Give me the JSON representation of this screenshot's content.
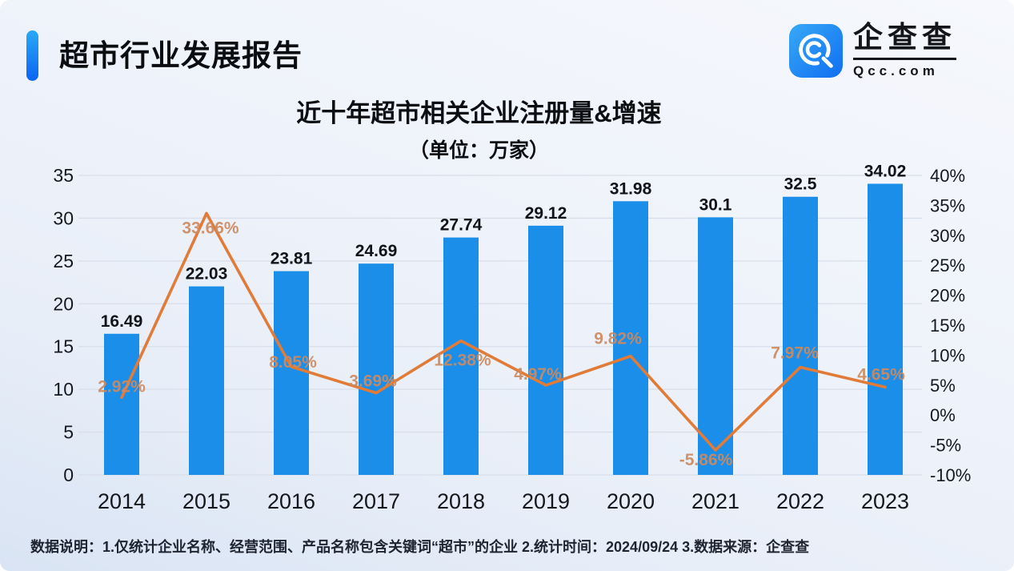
{
  "header": {
    "title": "超市行业发展报告"
  },
  "logo": {
    "icon": "qcc-logo-icon",
    "name": "企查查",
    "domain": "Qcc.com"
  },
  "footer": {
    "note": "数据说明：1.仅统计企业名称、经营范围、产品名称包含关键词“超市”的企业  2.统计时间：2024/09/24   3.数据来源：企查查"
  },
  "chart_data": {
    "type": "bar",
    "combo": "bar+line",
    "title": "近十年超市相关企业注册量&增速",
    "subtitle": "（单位：万家）",
    "categories": [
      "2014",
      "2015",
      "2016",
      "2017",
      "2018",
      "2019",
      "2020",
      "2021",
      "2022",
      "2023"
    ],
    "series": [
      {
        "name": "registrations",
        "type": "bar",
        "unit": "万家",
        "color": "#1a8ee9",
        "values": [
          16.49,
          22.03,
          23.81,
          24.69,
          27.74,
          29.12,
          31.98,
          30.1,
          32.5,
          34.02
        ],
        "labels": [
          "16.49",
          "22.03",
          "23.81",
          "24.69",
          "27.74",
          "29.12",
          "31.98",
          "30.1",
          "32.5",
          "34.02"
        ]
      },
      {
        "name": "growth-rate",
        "type": "line",
        "unit": "%",
        "color": "#e07b38",
        "values": [
          2.92,
          33.66,
          8.05,
          3.69,
          12.38,
          4.97,
          9.82,
          -5.86,
          7.97,
          4.65
        ],
        "labels": [
          "2.92%",
          "33.66%",
          "8.05%",
          "3.69%",
          "12.38%",
          "4.97%",
          "9.82%",
          "-5.86%",
          "7.97%",
          "4.65%"
        ]
      }
    ],
    "left_axis": {
      "min": 0,
      "max": 35,
      "ticks": [
        0,
        5,
        10,
        15,
        20,
        25,
        30,
        35
      ],
      "tick_labels": [
        "0",
        "5",
        "10",
        "15",
        "20",
        "25",
        "30",
        "35"
      ]
    },
    "right_axis": {
      "min": -10,
      "max": 40,
      "tick_labels": [
        "40%",
        "35%",
        "30%",
        "25%",
        "20%",
        "15%",
        "10%",
        "5%",
        "0%",
        "-5%",
        "-10%"
      ]
    },
    "grid": true,
    "legend": "none",
    "gridline_color": "#d8deea"
  }
}
